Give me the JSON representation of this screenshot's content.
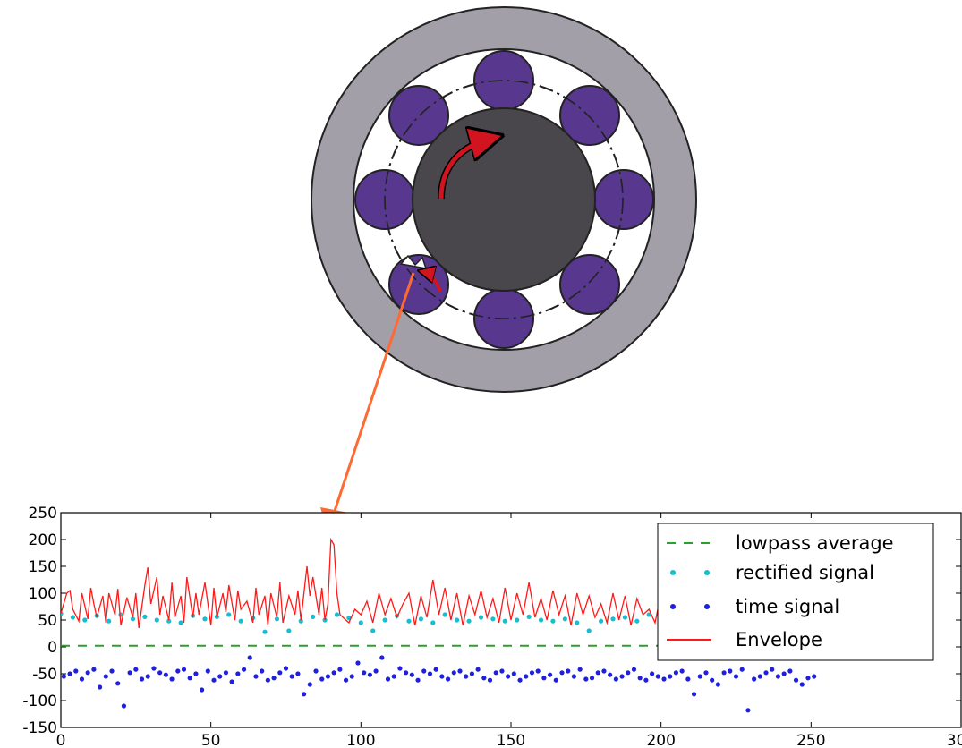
{
  "diagram": {
    "elements": [
      "outer-race",
      "rolling-elements",
      "cage",
      "inner-race",
      "rotation-arrow",
      "defect-marker",
      "pointer-arrow"
    ],
    "colors": {
      "outer_race": "#a39fa8",
      "rolling_element": "#58378f",
      "inner_race": "#4a474c",
      "rotation_arrow": "#d11420",
      "pointer_arrow": "#ff6a33"
    }
  },
  "chart_data": {
    "type": "line",
    "xlim": [
      0,
      300
    ],
    "ylim": [
      -150,
      250
    ],
    "xticks": [
      "0",
      "50",
      "100",
      "150",
      "200",
      "250",
      "300"
    ],
    "yticks": [
      "250",
      "200",
      "150",
      "100",
      "50",
      "0",
      "-50",
      "-100",
      "-150"
    ],
    "legend_position": "top-right",
    "legend": [
      {
        "label": "lowpass average",
        "color": "#2ca02c",
        "style": "dashed"
      },
      {
        "label": "rectified signal",
        "color": "#17becf",
        "style": "dots"
      },
      {
        "label": "time signal",
        "color": "#1f1fe0",
        "style": "dots"
      },
      {
        "label": "Envelope",
        "color": "#ff1a1a",
        "style": "line"
      }
    ],
    "series": [
      {
        "name": "lowpass average",
        "x": [
          0,
          250
        ],
        "y": [
          2,
          2
        ]
      },
      {
        "name": "Envelope",
        "x": [
          0,
          2,
          3,
          4,
          6,
          7,
          9,
          10,
          11,
          12,
          14,
          15,
          16,
          18,
          19,
          20,
          22,
          24,
          25,
          26,
          28,
          29,
          30,
          32,
          33,
          34,
          36,
          37,
          38,
          40,
          41,
          42,
          44,
          45,
          46,
          48,
          50,
          51,
          52,
          54,
          55,
          56,
          58,
          59,
          60,
          62,
          64,
          65,
          66,
          68,
          69,
          70,
          72,
          73,
          74,
          76,
          78,
          79,
          80,
          82,
          83,
          84,
          86,
          87,
          88,
          89,
          90,
          91,
          92,
          93,
          94,
          96,
          98,
          100,
          102,
          104,
          106,
          108,
          110,
          112,
          114,
          116,
          118,
          120,
          122,
          124,
          126,
          128,
          130,
          132,
          134,
          136,
          138,
          140,
          142,
          144,
          146,
          148,
          150,
          152,
          154,
          156,
          158,
          160,
          162,
          164,
          166,
          168,
          170,
          172,
          174,
          176,
          178,
          180,
          182,
          184,
          186,
          188,
          190,
          192,
          194,
          196,
          198,
          200,
          202,
          204
        ],
        "y": [
          62,
          100,
          105,
          70,
          48,
          100,
          52,
          110,
          80,
          55,
          95,
          45,
          100,
          60,
          108,
          40,
          92,
          55,
          100,
          35,
          115,
          148,
          80,
          130,
          60,
          95,
          50,
          120,
          55,
          95,
          45,
          130,
          55,
          100,
          60,
          120,
          40,
          110,
          55,
          100,
          65,
          115,
          50,
          105,
          70,
          85,
          45,
          110,
          60,
          95,
          40,
          100,
          55,
          120,
          45,
          95,
          60,
          105,
          50,
          150,
          95,
          130,
          60,
          110,
          50,
          80,
          200,
          190,
          100,
          60,
          55,
          45,
          70,
          60,
          85,
          45,
          100,
          60,
          90,
          55,
          80,
          100,
          40,
          95,
          55,
          125,
          60,
          110,
          50,
          100,
          40,
          95,
          60,
          105,
          55,
          90,
          45,
          110,
          50,
          100,
          60,
          120,
          55,
          90,
          50,
          105,
          60,
          95,
          40,
          100,
          60,
          95,
          55,
          80,
          45,
          100,
          50,
          95,
          40,
          90,
          60,
          70,
          45,
          100,
          50,
          138
        ]
      },
      {
        "name": "rectified signal",
        "x": [
          0,
          4,
          8,
          12,
          16,
          20,
          24,
          28,
          32,
          36,
          40,
          44,
          48,
          52,
          56,
          60,
          64,
          68,
          72,
          76,
          80,
          84,
          88,
          92,
          96,
          100,
          104,
          108,
          112,
          116,
          120,
          124,
          128,
          132,
          136,
          140,
          144,
          148,
          152,
          156,
          160,
          164,
          168,
          172,
          176,
          180,
          184,
          188,
          192,
          196,
          200,
          204
        ],
        "y": [
          62,
          55,
          50,
          58,
          48,
          60,
          52,
          56,
          50,
          48,
          45,
          58,
          52,
          56,
          60,
          48,
          54,
          28,
          52,
          30,
          48,
          56,
          50,
          60,
          54,
          45,
          30,
          50,
          58,
          48,
          52,
          45,
          60,
          50,
          48,
          55,
          52,
          48,
          50,
          56,
          50,
          48,
          52,
          45,
          30,
          48,
          52,
          55,
          48,
          60,
          50,
          55
        ]
      },
      {
        "name": "time signal",
        "x": [
          1,
          3,
          5,
          7,
          9,
          11,
          13,
          15,
          17,
          19,
          21,
          23,
          25,
          27,
          29,
          31,
          33,
          35,
          37,
          39,
          41,
          43,
          45,
          47,
          49,
          51,
          53,
          55,
          57,
          59,
          61,
          63,
          65,
          67,
          69,
          71,
          73,
          75,
          77,
          79,
          81,
          83,
          85,
          87,
          89,
          91,
          93,
          95,
          97,
          99,
          101,
          103,
          105,
          107,
          109,
          111,
          113,
          115,
          117,
          119,
          121,
          123,
          125,
          127,
          129,
          131,
          133,
          135,
          137,
          139,
          141,
          143,
          145,
          147,
          149,
          151,
          153,
          155,
          157,
          159,
          161,
          163,
          165,
          167,
          169,
          171,
          173,
          175,
          177,
          179,
          181,
          183,
          185,
          187,
          189,
          191,
          193,
          195,
          197,
          199,
          201,
          203,
          205,
          207,
          209,
          211,
          213,
          215,
          217,
          219,
          221,
          223,
          225,
          227,
          229,
          231,
          233,
          235,
          237,
          239,
          241,
          243,
          245,
          247,
          249,
          251
        ],
        "y": [
          -55,
          -50,
          -45,
          -60,
          -48,
          -42,
          -75,
          -55,
          -45,
          -68,
          -110,
          -48,
          -42,
          -60,
          -55,
          -40,
          -48,
          -52,
          -60,
          -45,
          -42,
          -58,
          -50,
          -80,
          -45,
          -62,
          -55,
          -48,
          -65,
          -50,
          -42,
          -20,
          -55,
          -45,
          -62,
          -58,
          -48,
          -40,
          -55,
          -50,
          -88,
          -70,
          -45,
          -60,
          -55,
          -48,
          -42,
          -62,
          -55,
          -30,
          -48,
          -52,
          -45,
          -20,
          -60,
          -55,
          -40,
          -48,
          -52,
          -62,
          -45,
          -50,
          -42,
          -55,
          -60,
          -48,
          -45,
          -55,
          -50,
          -42,
          -58,
          -62,
          -48,
          -45,
          -55,
          -50,
          -62,
          -55,
          -48,
          -45,
          -58,
          -52,
          -62,
          -48,
          -45,
          -55,
          -42,
          -60,
          -58,
          -48,
          -45,
          -52,
          -60,
          -55,
          -48,
          -42,
          -58,
          -62,
          -50,
          -55,
          -60,
          -55,
          -48,
          -45,
          -60,
          -88,
          -55,
          -48,
          -62,
          -70,
          -48,
          -45,
          -55,
          -42,
          -118,
          -60,
          -55,
          -48,
          -42,
          -55,
          -50,
          -45,
          -62,
          -70,
          -58,
          -55
        ]
      }
    ]
  }
}
